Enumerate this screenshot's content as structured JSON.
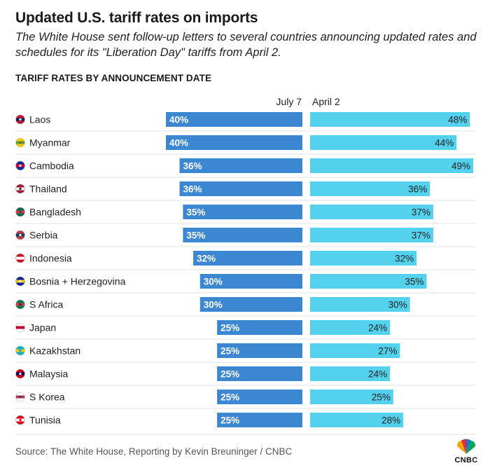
{
  "title": "Updated U.S. tariff rates on imports",
  "subtitle": "The White House sent follow-up letters to several countries announcing updated rates and schedules for its \"Liberation Day\" tariffs from April 2.",
  "section_label": "TARIFF RATES BY ANNOUNCEMENT DATE",
  "source": "Source: The White House, Reporting by Kevin Breuninger / CNBC",
  "logo_text": "CNBC",
  "colors": {
    "july7": "#3c87d2",
    "april2": "#54d1ec",
    "label": "#222222"
  },
  "chart_data": {
    "type": "bar",
    "orientation": "horizontal-diverging",
    "categories": [
      "Laos",
      "Myanmar",
      "Cambodia",
      "Thailand",
      "Bangladesh",
      "Serbia",
      "Indonesia",
      "Bosnia + Herzegovina",
      "S Africa",
      "Japan",
      "Kazakhstan",
      "Malaysia",
      "S Korea",
      "Tunisia"
    ],
    "series": [
      {
        "name": "July 7",
        "values": [
          40,
          40,
          36,
          36,
          35,
          35,
          32,
          30,
          30,
          25,
          25,
          25,
          25,
          25
        ],
        "color": "#3c87d2"
      },
      {
        "name": "April 2",
        "values": [
          48,
          44,
          49,
          36,
          37,
          37,
          32,
          35,
          30,
          24,
          27,
          24,
          25,
          28
        ],
        "color": "#54d1ec"
      }
    ],
    "value_suffix": "%",
    "xlim": [
      0,
      49
    ]
  }
}
